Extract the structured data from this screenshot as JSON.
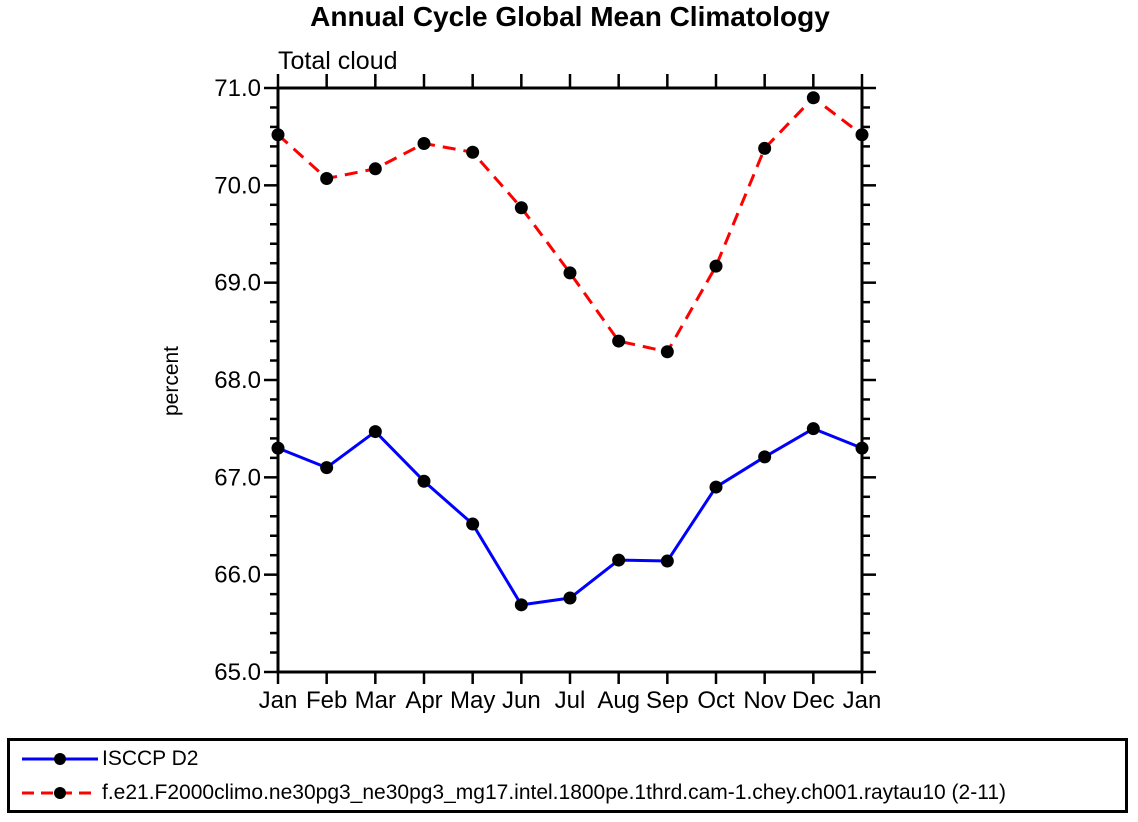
{
  "chart": {
    "accent_colors": {
      "observation": "#0000ff",
      "model": "#ff0000",
      "marker": "#000000",
      "axis": "#000000"
    }
  },
  "chart_data": {
    "type": "line",
    "title": "Annual Cycle Global Mean Climatology",
    "subtitle": "Total cloud",
    "ylabel": "percent",
    "xlabel": "",
    "categories": [
      "Jan",
      "Feb",
      "Mar",
      "Apr",
      "May",
      "Jun",
      "Jul",
      "Aug",
      "Sep",
      "Oct",
      "Nov",
      "Dec",
      "Jan"
    ],
    "series": [
      {
        "name": "ISCCP D2",
        "color": "#0000ff",
        "style": "solid",
        "marker": "filled-circle",
        "values": [
          67.3,
          67.1,
          67.47,
          66.96,
          66.52,
          65.69,
          65.76,
          66.15,
          66.14,
          66.9,
          67.21,
          67.5,
          67.3
        ]
      },
      {
        "name": "f.e21.F2000climo.ne30pg3_ne30pg3_mg17.intel.1800pe.1thrd.cam-1.chey.ch001.raytau10 (2-11)",
        "color": "#ff0000",
        "style": "dashed",
        "marker": "filled-circle",
        "values": [
          70.52,
          70.07,
          70.17,
          70.43,
          70.34,
          69.77,
          69.1,
          68.4,
          68.29,
          69.17,
          70.38,
          70.9,
          70.52
        ]
      }
    ],
    "ylim": [
      65.0,
      71.0
    ],
    "ytick_major": 1.0,
    "ytick_minor": 0.2,
    "ytick_labels": [
      "65.0",
      "66.0",
      "67.0",
      "68.0",
      "69.0",
      "70.0",
      "71.0"
    ],
    "grid": "off",
    "legend_position": "bottom-box-full-width",
    "ticks": "outward-all-sides"
  }
}
